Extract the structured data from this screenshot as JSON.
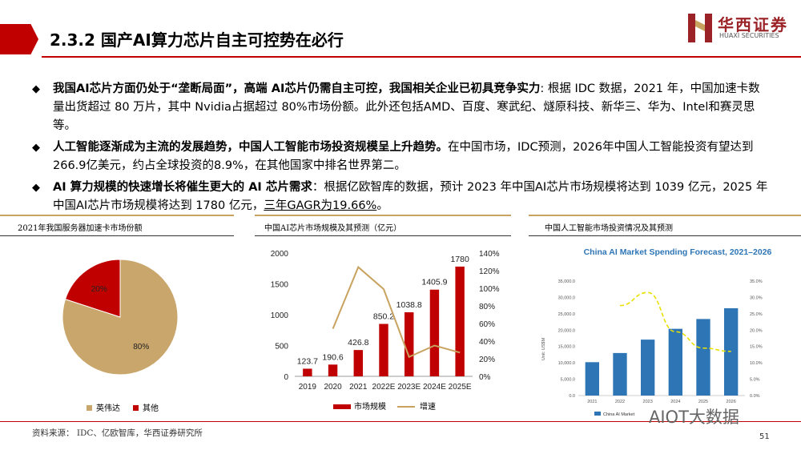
{
  "header": {
    "title": "2.3.2 国产AI算力芯片自主可控势在必行",
    "logo_cn": "华西证券",
    "logo_en": "HUAXI SECURITIES"
  },
  "bullets": [
    {
      "bold": "我国AI芯片方面仍处于“垄断局面”，高端 AI芯片仍需自主可控，我国相关企业已初具竞争实力",
      "text": ": 根据 IDC 数据，2021 年，中国加速卡数量出货超过 80 万片，其中 Nvidia占据超过 80%市场份额。此外还包括AMD、百度、寒武纪、燧原科技、新华三、华为、Intel和赛灵思等。",
      "underline": ""
    },
    {
      "bold": "人工智能逐渐成为主流的发展趋势，中国人工智能市场投资规模呈上升趋势。",
      "text": "在中国市场，IDC预测，2026年中国人工智能投资有望达到266.9亿美元，约占全球投资的8.9%，在其他国家中排名世界第二。",
      "underline": ""
    },
    {
      "bold": "AI 算力规模的快速增长将催生更大的 AI 芯片需求",
      "text": "：根据亿欧智库的数据，预计 2023 年中国AI芯片市场规模将达到 1039 亿元，2025 年中国AI芯片市场规模将达到 1780 亿元，",
      "underline": "三年GAGR为19.66%",
      "tail": "。"
    }
  ],
  "panels": {
    "left_title": "2021年我国服务器加速卡市场份额",
    "mid_title": "中国AI芯片市场规模及其预测（亿元）",
    "right_title": "中国人工智能市场投资情况及其预测"
  },
  "footer": {
    "source": "资料来源：   IDC、亿欧智库，华西证券研究所",
    "page": "51",
    "watermark": "AIOT大数据"
  },
  "colors": {
    "brand_red": "#c00000",
    "gold": "#c8a35f",
    "pie_nvidia": "#c9a66b",
    "pie_other": "#c00000",
    "bar_red": "#c00000",
    "growth_line": "#c8a35f",
    "idc_bar": "#2e75b6",
    "idc_dash": "#e8e000"
  },
  "chart_data": [
    {
      "type": "pie",
      "labels": [
        "英伟达",
        "其他"
      ],
      "values": [
        80,
        20
      ],
      "data_labels": [
        "80%",
        "20%"
      ],
      "legend": "bottom"
    },
    {
      "type": "bar",
      "categories": [
        "2019",
        "2020",
        "2021",
        "2022E",
        "2023E",
        "2024E",
        "2025E"
      ],
      "series": [
        {
          "name": "市场规模",
          "values": [
            123.7,
            190.6,
            426.8,
            850.2,
            1038.8,
            1405.9,
            1780
          ],
          "axis": "left"
        },
        {
          "name": "增速",
          "type": "line",
          "values": [
            null,
            54,
            124,
            99,
            22,
            35,
            27
          ],
          "axis": "right"
        }
      ],
      "value_labels": [
        "123.7",
        "190.6",
        "426.8",
        "850.2",
        "1038.8",
        "1405.9",
        "1780"
      ],
      "ylim": [
        0,
        2000
      ],
      "yticks": [
        "0",
        "500",
        "1000",
        "1500",
        "2000"
      ],
      "y2lim": [
        0,
        140
      ],
      "y2ticks": [
        "0%",
        "20%",
        "40%",
        "60%",
        "80%",
        "100%",
        "120%",
        "140%"
      ],
      "legend": "bottom"
    },
    {
      "type": "bar",
      "title": "China AI Market Spending Forecast, 2021–2026",
      "categories": [
        "2021",
        "2022",
        "2023",
        "2024",
        "2025",
        "2026"
      ],
      "series": [
        {
          "name": "China AI Market",
          "values": [
            10200,
            13000,
            17100,
            20400,
            23400,
            26690
          ],
          "axis": "left"
        },
        {
          "type": "line",
          "values": [
            null,
            27.5,
            31.5,
            19.5,
            14.5,
            13.5
          ],
          "axis": "right"
        }
      ],
      "yticks": [
        "0.0",
        "5,000.0",
        "10,000.0",
        "15,000.0",
        "20,000.0",
        "25,000.0",
        "30,000.0",
        "35,000.0"
      ],
      "ylim": [
        0,
        35000
      ],
      "y2ticks": [
        "0.0%",
        "5.0%",
        "10.0%",
        "15.0%",
        "20.0%",
        "25.0%",
        "30.0%",
        "35.0%"
      ],
      "y2lim": [
        0,
        35
      ],
      "ylabel": "Unit: US$M",
      "legend": "bottom"
    }
  ]
}
